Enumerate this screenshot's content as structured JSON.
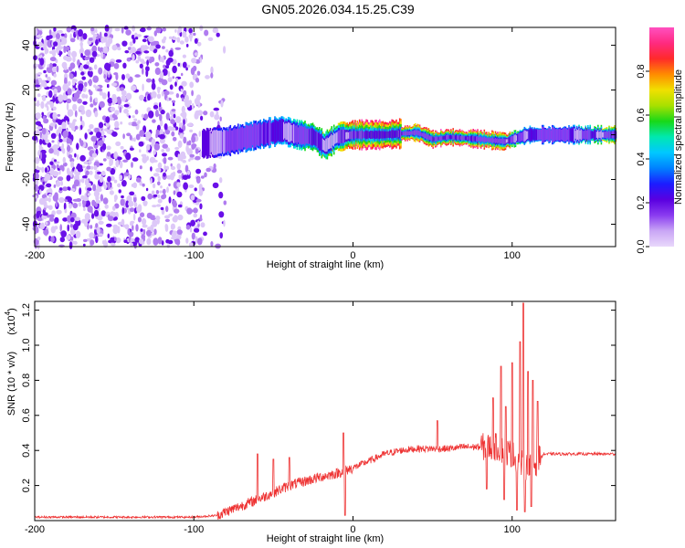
{
  "title": "GN05.2026.034.15.25.C39",
  "chart_data": [
    {
      "type": "heatmap",
      "name": "spectrogram",
      "xlabel": "Height of straight line (km)",
      "ylabel": "Frequency (Hz)",
      "xlim": [
        -200,
        165
      ],
      "ylim": [
        -50,
        48
      ],
      "xticks": [
        -200,
        -100,
        0,
        100
      ],
      "yticks": [
        -40,
        -20,
        0,
        20,
        40
      ],
      "colorbar": {
        "label": "Normalized spectral amplitude",
        "range": [
          0,
          1
        ],
        "ticks": [
          0.0,
          0.2,
          0.4,
          0.6,
          0.8
        ],
        "colors": [
          "#e9d8fb",
          "#c9a6f5",
          "#8a3cf0",
          "#5a00e0",
          "#1c1cff",
          "#0080ff",
          "#00c8ff",
          "#00e8b0",
          "#18d818",
          "#a8e000",
          "#f0e000",
          "#ff8c00",
          "#ff2a2a",
          "#ff2a80",
          "#ff50c0"
        ]
      },
      "ridge": {
        "x": [
          -95,
          -80,
          -60,
          -45,
          -35,
          -25,
          -18,
          -10,
          0,
          20,
          40,
          50,
          60,
          80,
          95,
          105,
          110,
          130,
          165
        ],
        "y": [
          -4,
          -3,
          0,
          2,
          0,
          -1,
          -5,
          -1,
          0,
          0,
          1,
          -2,
          -1,
          -2,
          -3,
          -1,
          0,
          0,
          0
        ],
        "amplitude": [
          0.2,
          0.3,
          0.35,
          0.4,
          0.5,
          0.55,
          0.6,
          0.65,
          0.9,
          0.95,
          0.85,
          0.9,
          0.9,
          0.9,
          0.85,
          0.5,
          0.4,
          0.3,
          0.75
        ]
      }
    },
    {
      "type": "line",
      "name": "snr",
      "xlabel": "Height of straight line (km)",
      "ylabel": "SNR (10 * v/v)",
      "scale_label": "(x10",
      "scale_exp": "4",
      "xlim": [
        -200,
        165
      ],
      "ylim": [
        0,
        1.25
      ],
      "xticks": [
        -200,
        -100,
        0,
        100
      ],
      "yticks": [
        0.2,
        0.4,
        0.6,
        0.8,
        1.0,
        1.2
      ],
      "color": "#ee3333",
      "baseline": {
        "x": [
          -200,
          -150,
          -100,
          -85,
          -80,
          -60,
          -40,
          -20,
          -10,
          0,
          10,
          20,
          30,
          40,
          50,
          60,
          70,
          80,
          90,
          100,
          105,
          110,
          115,
          120,
          140,
          165
        ],
        "y": [
          0.02,
          0.02,
          0.02,
          0.03,
          0.05,
          0.12,
          0.2,
          0.25,
          0.27,
          0.3,
          0.34,
          0.38,
          0.4,
          0.41,
          0.41,
          0.41,
          0.42,
          0.42,
          0.42,
          0.38,
          0.33,
          0.3,
          0.33,
          0.38,
          0.38,
          0.38
        ]
      },
      "peaks": [
        {
          "x": -60,
          "y": 0.38
        },
        {
          "x": -50,
          "y": 0.35
        },
        {
          "x": -40,
          "y": 0.36
        },
        {
          "x": -6,
          "y": 0.5
        },
        {
          "x": -5,
          "y": 0.03
        },
        {
          "x": 53,
          "y": 0.57
        },
        {
          "x": 88,
          "y": 0.7
        },
        {
          "x": 93,
          "y": 0.88
        },
        {
          "x": 96,
          "y": 0.65
        },
        {
          "x": 100,
          "y": 0.9
        },
        {
          "x": 105,
          "y": 1.02
        },
        {
          "x": 107,
          "y": 1.24
        },
        {
          "x": 110,
          "y": 0.85
        },
        {
          "x": 113,
          "y": 0.8
        },
        {
          "x": 116,
          "y": 0.68
        }
      ],
      "dips": [
        {
          "x": 84,
          "y": 0.18
        },
        {
          "x": 95,
          "y": 0.12
        },
        {
          "x": 103,
          "y": 0.06
        },
        {
          "x": 108,
          "y": 0.05
        },
        {
          "x": 112,
          "y": 0.08
        }
      ]
    }
  ]
}
